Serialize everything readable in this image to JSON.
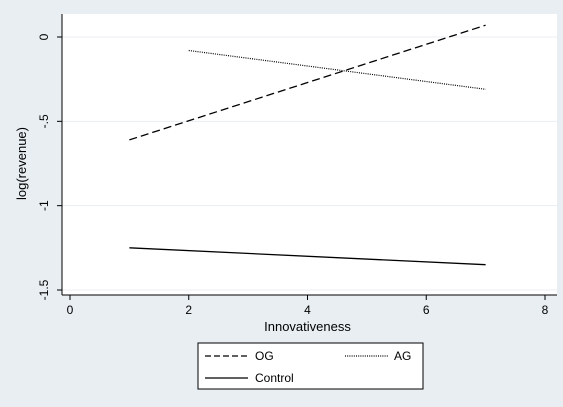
{
  "chart_data": {
    "type": "line",
    "title": "",
    "xlabel": "Innovativeness",
    "ylabel": "log(revenue)",
    "xlim": [
      0,
      8
    ],
    "ylim": [
      -1.5,
      0
    ],
    "xticks": [
      0,
      2,
      4,
      6,
      8
    ],
    "yticks": [
      0,
      -0.5,
      -1,
      -1.5
    ],
    "xtick_labels": [
      "0",
      "2",
      "4",
      "6",
      "8"
    ],
    "ytick_labels": [
      "0",
      "-.5",
      "-1",
      "-1.5"
    ],
    "grid": "horizontal",
    "legend_position": "bottom",
    "series": [
      {
        "name": "OG",
        "style": "dashed",
        "x": [
          1,
          7
        ],
        "y": [
          -0.61,
          0.07
        ]
      },
      {
        "name": "AG",
        "style": "dotted",
        "x": [
          2,
          7
        ],
        "y": [
          -0.08,
          -0.31
        ]
      },
      {
        "name": "Control",
        "style": "solid",
        "x": [
          1,
          7
        ],
        "y": [
          -1.25,
          -1.35
        ]
      }
    ],
    "colors": {
      "outer_background": "#e8eef2",
      "plot_background": "#ffffff",
      "line": "#000000",
      "grid": "#e8eef2"
    }
  }
}
